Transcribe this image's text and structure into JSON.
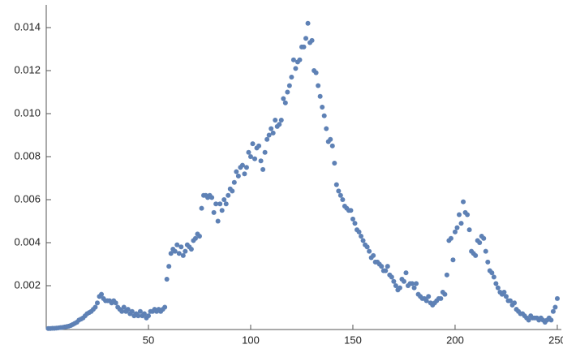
{
  "chart_data": {
    "type": "scatter",
    "color": "#5e81b5",
    "x": [
      1,
      2,
      3,
      4,
      5,
      6,
      7,
      8,
      9,
      10,
      11,
      12,
      13,
      14,
      15,
      16,
      17,
      18,
      19,
      20,
      21,
      22,
      23,
      24,
      25,
      26,
      27,
      28,
      29,
      30,
      31,
      32,
      33,
      34,
      35,
      36,
      37,
      38,
      39,
      40,
      41,
      42,
      43,
      44,
      45,
      46,
      47,
      48,
      49,
      50,
      51,
      52,
      53,
      54,
      55,
      56,
      57,
      58,
      59,
      60,
      61,
      62,
      63,
      64,
      65,
      66,
      67,
      68,
      69,
      70,
      71,
      72,
      73,
      74,
      75,
      76,
      77,
      78,
      79,
      80,
      81,
      82,
      83,
      84,
      85,
      86,
      87,
      88,
      89,
      90,
      91,
      92,
      93,
      94,
      95,
      96,
      97,
      98,
      99,
      100,
      101,
      102,
      103,
      104,
      105,
      106,
      107,
      108,
      109,
      110,
      111,
      112,
      113,
      114,
      115,
      116,
      117,
      118,
      119,
      120,
      121,
      122,
      123,
      124,
      125,
      126,
      127,
      128,
      129,
      130,
      131,
      132,
      133,
      134,
      135,
      136,
      137,
      138,
      139,
      140,
      141,
      142,
      143,
      144,
      145,
      146,
      147,
      148,
      149,
      150,
      151,
      152,
      153,
      154,
      155,
      156,
      157,
      158,
      159,
      160,
      161,
      162,
      163,
      164,
      165,
      166,
      167,
      168,
      169,
      170,
      171,
      172,
      173,
      174,
      175,
      176,
      177,
      178,
      179,
      180,
      181,
      182,
      183,
      184,
      185,
      186,
      187,
      188,
      189,
      190,
      191,
      192,
      193,
      194,
      195,
      196,
      197,
      198,
      199,
      200,
      201,
      202,
      203,
      204,
      205,
      206,
      207,
      208,
      209,
      210,
      211,
      212,
      213,
      214,
      215,
      216,
      217,
      218,
      219,
      220,
      221,
      222,
      223,
      224,
      225,
      226,
      227,
      228,
      229,
      230,
      231,
      232,
      233,
      234,
      235,
      236,
      237,
      238,
      239,
      240,
      241,
      242,
      243,
      244,
      245,
      246,
      247,
      248,
      249,
      250
    ],
    "values": [
      1e-05,
      1e-05,
      2e-05,
      2e-05,
      3e-05,
      4e-05,
      5e-05,
      6e-05,
      8e-05,
      0.0001,
      0.00012,
      0.00015,
      0.0002,
      0.00025,
      0.0003,
      0.0004,
      0.00045,
      0.0005,
      0.0006,
      0.0007,
      0.00075,
      0.0008,
      0.0009,
      0.001,
      0.0012,
      0.0015,
      0.0016,
      0.0014,
      0.0013,
      0.0013,
      0.0013,
      0.0012,
      0.0013,
      0.0012,
      0.001,
      0.0009,
      0.0008,
      0.001,
      0.0008,
      0.0009,
      0.0007,
      0.0008,
      0.0006,
      0.0007,
      0.0006,
      0.0008,
      0.0006,
      0.0007,
      0.0005,
      0.0006,
      0.0008,
      0.0008,
      0.0009,
      0.0008,
      0.0009,
      0.0008,
      0.0009,
      0.001,
      0.0023,
      0.0029,
      0.0035,
      0.0037,
      0.0036,
      0.0039,
      0.0035,
      0.0038,
      0.0034,
      0.0036,
      0.0039,
      0.0038,
      0.0037,
      0.0041,
      0.0042,
      0.0044,
      0.0043,
      0.0056,
      0.0062,
      0.0062,
      0.0061,
      0.0062,
      0.0061,
      0.0054,
      0.0058,
      0.005,
      0.0058,
      0.0055,
      0.006,
      0.0058,
      0.0062,
      0.0065,
      0.0064,
      0.0068,
      0.0073,
      0.0071,
      0.0075,
      0.0076,
      0.0072,
      0.0075,
      0.0082,
      0.008,
      0.0086,
      0.0079,
      0.0084,
      0.0085,
      0.0078,
      0.0074,
      0.0082,
      0.0088,
      0.009,
      0.0093,
      0.0091,
      0.0097,
      0.0094,
      0.0095,
      0.0097,
      0.0107,
      0.0105,
      0.011,
      0.0113,
      0.0117,
      0.0125,
      0.0121,
      0.0124,
      0.0125,
      0.0131,
      0.0131,
      0.0135,
      0.0142,
      0.0133,
      0.0134,
      0.012,
      0.0119,
      0.0113,
      0.0108,
      0.0103,
      0.0099,
      0.0093,
      0.0087,
      0.0088,
      0.0085,
      0.0077,
      0.0067,
      0.0064,
      0.0062,
      0.006,
      0.0057,
      0.0056,
      0.0055,
      0.0055,
      0.0051,
      0.0049,
      0.0046,
      0.0045,
      0.0043,
      0.0041,
      0.0039,
      0.0038,
      0.0036,
      0.0033,
      0.0034,
      0.0031,
      0.0031,
      0.003,
      0.0029,
      0.0027,
      0.0027,
      0.0029,
      0.0025,
      0.0024,
      0.0022,
      0.002,
      0.0018,
      0.0019,
      0.0023,
      0.0022,
      0.0026,
      0.002,
      0.0021,
      0.0021,
      0.0019,
      0.0021,
      0.0016,
      0.0015,
      0.0014,
      0.0014,
      0.0013,
      0.0015,
      0.0012,
      0.0011,
      0.0012,
      0.0013,
      0.0014,
      0.0014,
      0.0017,
      0.0016,
      0.0025,
      0.0041,
      0.0042,
      0.0032,
      0.0045,
      0.0047,
      0.0053,
      0.0049,
      0.0059,
      0.0054,
      0.0053,
      0.0046,
      0.0036,
      0.0035,
      0.0034,
      0.0041,
      0.004,
      0.0043,
      0.0042,
      0.0036,
      0.0031,
      0.0027,
      0.0026,
      0.0024,
      0.0021,
      0.0019,
      0.0017,
      0.0016,
      0.0017,
      0.0015,
      0.0013,
      0.0013,
      0.0011,
      0.0012,
      0.0009,
      0.0008,
      0.0007,
      0.0007,
      0.0006,
      0.0005,
      0.0004,
      0.0006,
      0.0005,
      0.0005,
      0.0005,
      0.0004,
      0.0005,
      0.0004,
      0.0003,
      0.0004,
      0.0005,
      0.0004,
      0.0008,
      0.001,
      0.0014
    ],
    "xlim": [
      0,
      252
    ],
    "ylim": [
      0,
      0.015
    ],
    "xticks": [
      50,
      100,
      150,
      200,
      250
    ],
    "yticks": [
      0.002,
      0.004,
      0.006,
      0.008,
      {
        "value": 0.01,
        "label": "0.010"
      },
      0.012,
      0.014
    ],
    "grid": false
  }
}
